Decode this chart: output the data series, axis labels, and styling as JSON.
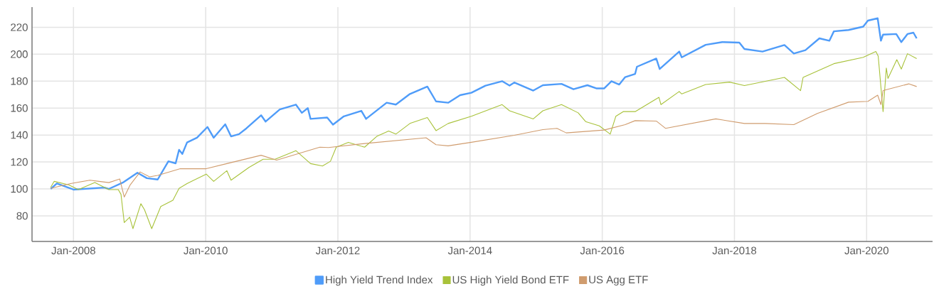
{
  "chart_data": {
    "type": "line",
    "xlim": [
      "2007-05-17",
      "2020-12-31"
    ],
    "ylim": [
      61,
      235
    ],
    "xticks": [
      {
        "value": "2008-01-01",
        "label": "Jan-2008"
      },
      {
        "value": "2010-01-01",
        "label": "Jan-2010"
      },
      {
        "value": "2012-01-01",
        "label": "Jan-2012"
      },
      {
        "value": "2014-01-01",
        "label": "Jan-2014"
      },
      {
        "value": "2016-01-01",
        "label": "Jan-2016"
      },
      {
        "value": "2018-01-01",
        "label": "Jan-2018"
      },
      {
        "value": "2020-01-01",
        "label": "Jan-2020"
      }
    ],
    "yticks": [
      80,
      100,
      120,
      140,
      160,
      180,
      200,
      220
    ],
    "grid": true,
    "legend": "bottom",
    "marker": "none",
    "line_style": "solid",
    "series": [
      {
        "name": "High Yield Trend Index",
        "color": "#4f9cf9",
        "x": [
          "2007-08-28",
          "2007-10-01",
          "2008-01-01",
          "2008-06-20",
          "2008-07-15",
          "2008-10-04",
          "2008-12-20",
          "2009-02-10",
          "2009-04-11",
          "2009-06-09",
          "2009-07-19",
          "2009-08-07",
          "2009-08-25",
          "2009-09-20",
          "2009-11-14",
          "2010-01-11",
          "2010-02-14",
          "2010-04-19",
          "2010-05-21",
          "2010-07-04",
          "2010-08-14",
          "2010-11-03",
          "2010-11-28",
          "2011-02-14",
          "2011-05-14",
          "2011-06-16",
          "2011-07-19",
          "2011-08-03",
          "2011-11-03",
          "2011-12-05",
          "2012-02-03",
          "2012-05-10",
          "2012-06-05",
          "2012-09-27",
          "2012-11-17",
          "2013-02-03",
          "2013-05-10",
          "2013-06-27",
          "2013-09-02",
          "2013-11-07",
          "2014-01-08",
          "2014-03-27",
          "2014-06-27",
          "2014-08-07",
          "2014-09-02",
          "2014-12-16",
          "2015-02-07",
          "2015-05-21",
          "2015-07-26",
          "2015-10-11",
          "2015-12-02",
          "2016-01-11",
          "2016-02-21",
          "2016-04-04",
          "2016-05-07",
          "2016-07-01",
          "2016-07-11",
          "2016-10-26",
          "2016-11-14",
          "2017-03-02",
          "2017-03-16",
          "2017-07-26",
          "2017-10-26",
          "2018-01-28",
          "2018-02-25",
          "2018-06-05",
          "2018-10-04",
          "2018-11-25",
          "2019-01-28",
          "2019-04-15",
          "2019-06-09",
          "2019-07-04",
          "2019-09-23",
          "2019-12-13",
          "2020-01-08",
          "2020-03-02",
          "2020-03-20",
          "2020-04-01",
          "2020-06-13",
          "2020-07-11",
          "2020-08-14",
          "2020-09-16",
          "2020-10-04"
        ],
        "values": [
          100,
          104,
          99.5,
          101,
          100,
          105,
          112,
          108,
          107,
          120.5,
          119,
          129,
          126,
          134.5,
          138,
          146,
          138,
          148,
          139,
          140.7,
          145,
          154.7,
          150,
          159,
          162.6,
          156.5,
          160,
          152,
          153,
          147.7,
          153.9,
          158,
          152,
          164,
          162.6,
          170.5,
          176,
          165,
          164,
          169.6,
          171.4,
          176.7,
          180,
          176.7,
          179,
          173,
          177,
          178,
          174,
          177,
          174.6,
          174.6,
          180,
          177.5,
          183,
          185.4,
          190.7,
          196.8,
          189,
          202,
          197.7,
          207,
          209,
          208.6,
          203.9,
          202,
          206.8,
          200.5,
          203,
          211.8,
          210,
          217,
          218,
          220.5,
          225,
          226.7,
          210,
          214.6,
          215,
          209,
          215,
          216,
          211.8
        ]
      },
      {
        "name": "US High Yield Bond ETF",
        "color": "#a8c23a",
        "x": [
          "2007-08-28",
          "2007-09-16",
          "2007-12-05",
          "2008-01-28",
          "2008-04-28",
          "2008-07-15",
          "2008-09-05",
          "2008-09-20",
          "2008-10-08",
          "2008-11-07",
          "2008-11-25",
          "2009-01-08",
          "2009-01-28",
          "2009-03-09",
          "2009-04-28",
          "2009-07-04",
          "2009-08-07",
          "2009-09-20",
          "2010-01-04",
          "2010-02-14",
          "2010-04-28",
          "2010-05-21",
          "2010-08-28",
          "2010-11-14",
          "2011-01-19",
          "2011-05-14",
          "2011-08-03",
          "2011-10-08",
          "2011-11-21",
          "2011-12-23",
          "2012-02-28",
          "2012-05-28",
          "2012-08-03",
          "2012-10-08",
          "2012-11-17",
          "2013-02-03",
          "2013-05-10",
          "2013-06-27",
          "2013-09-02",
          "2014-01-08",
          "2014-06-27",
          "2014-08-07",
          "2014-12-16",
          "2015-02-07",
          "2015-05-21",
          "2015-08-21",
          "2015-10-01",
          "2015-12-16",
          "2016-02-14",
          "2016-03-16",
          "2016-04-26",
          "2016-07-01",
          "2016-11-10",
          "2016-11-21",
          "2017-03-02",
          "2017-03-16",
          "2017-07-26",
          "2017-12-05",
          "2018-02-25",
          "2018-10-04",
          "2019-01-01",
          "2019-01-15",
          "2019-07-04",
          "2019-12-13",
          "2020-02-21",
          "2020-03-05",
          "2020-04-01",
          "2020-04-19",
          "2020-04-28",
          "2020-06-16",
          "2020-07-11",
          "2020-08-14",
          "2020-10-04"
        ],
        "values": [
          101.2,
          105.6,
          103,
          99.5,
          104.7,
          99.5,
          99.5,
          96,
          75,
          79,
          70.5,
          89,
          84.6,
          70.5,
          87,
          91.6,
          100.4,
          104,
          111,
          105.6,
          113.5,
          106.5,
          116,
          122,
          122,
          128.4,
          118.8,
          117,
          120.5,
          131,
          134.6,
          131,
          139,
          143,
          140.7,
          148.6,
          153,
          143.3,
          148.6,
          153.9,
          162.6,
          158,
          152,
          158,
          162.6,
          156.5,
          150,
          146.8,
          140.7,
          153.9,
          157.4,
          157.4,
          168,
          162.6,
          172.3,
          170.5,
          177.5,
          179.3,
          176.7,
          182.8,
          173,
          182.8,
          193,
          197.7,
          202,
          198.6,
          157.4,
          189.8,
          182,
          196,
          189,
          200.4,
          196.8
        ]
      },
      {
        "name": "US Agg ETF",
        "color": "#d09c6e",
        "x": [
          "2007-08-28",
          "2007-12-16",
          "2008-04-01",
          "2008-05-21",
          "2008-07-15",
          "2008-09-13",
          "2008-10-08",
          "2008-11-10",
          "2009-01-04",
          "2009-02-25",
          "2009-04-11",
          "2009-08-14",
          "2010-01-04",
          "2010-04-28",
          "2010-11-03",
          "2011-01-28",
          "2011-09-23",
          "2011-11-10",
          "2012-05-28",
          "2013-05-03",
          "2013-06-27",
          "2013-09-02",
          "2014-01-08",
          "2014-09-02",
          "2015-02-07",
          "2015-04-26",
          "2015-06-16",
          "2016-01-11",
          "2016-05-07",
          "2016-07-01",
          "2016-10-26",
          "2016-12-16",
          "2017-09-20",
          "2018-02-25",
          "2018-06-20",
          "2018-11-25",
          "2019-04-04",
          "2019-09-23",
          "2020-01-08",
          "2020-03-02",
          "2020-03-20",
          "2020-04-01",
          "2020-08-21",
          "2020-10-04"
        ],
        "values": [
          100.4,
          104,
          106.5,
          105.6,
          104.7,
          107.4,
          94,
          103,
          112.6,
          109,
          110,
          115,
          115,
          118.8,
          125,
          121.4,
          131,
          130.7,
          133.7,
          138,
          132.8,
          132,
          134.6,
          139.8,
          144,
          145,
          141.6,
          143.7,
          147.7,
          150.7,
          150.4,
          145,
          152,
          148.6,
          148.6,
          147.7,
          156,
          164.4,
          165,
          169.6,
          162.6,
          173,
          178,
          176
        ]
      }
    ]
  }
}
